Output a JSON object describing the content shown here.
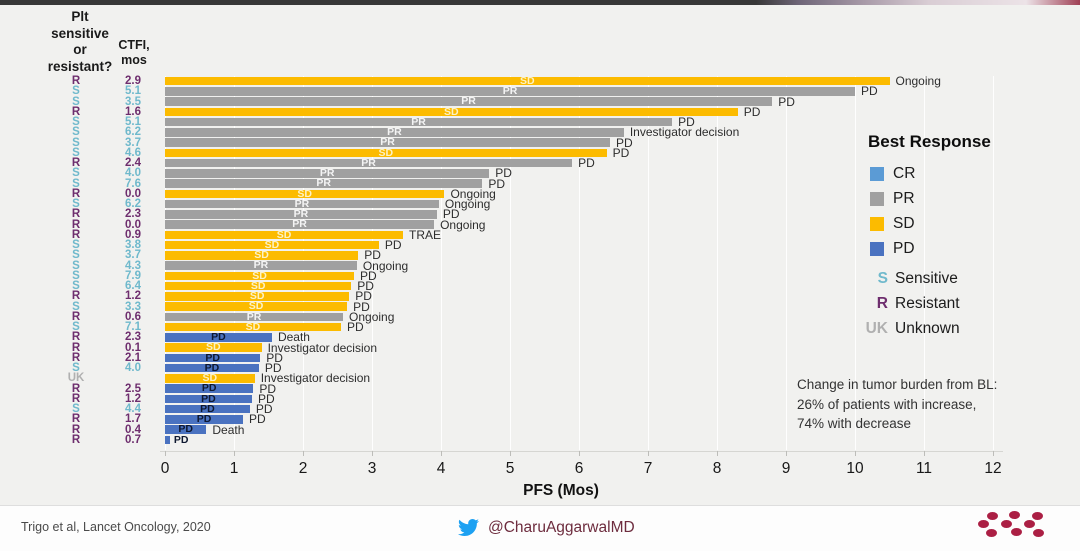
{
  "columns": {
    "plt_header_lines": [
      "Plt",
      "sensitive",
      "or",
      "resistant?"
    ],
    "ctfi_header_lines": [
      "CTFI,",
      "mos"
    ]
  },
  "colors": {
    "CR": "#5b9bd5",
    "PR": "#a0a0a0",
    "SD": "#fcbb00",
    "PD": "#4a72c0",
    "S": "#6fb9cc",
    "R": "#6e2e6e",
    "UK": "#b0b0b0"
  },
  "chart_data": {
    "type": "bar",
    "orientation": "horizontal",
    "xlabel": "PFS (Mos)",
    "xlim": [
      0,
      12
    ],
    "xticks": [
      0,
      1,
      2,
      3,
      4,
      5,
      6,
      7,
      8,
      9,
      10,
      11,
      12
    ],
    "grid": true,
    "rows": [
      {
        "plt": "R",
        "ctfi": "2.9",
        "response": "SD",
        "pfs": 10.5,
        "note": "Ongoing"
      },
      {
        "plt": "S",
        "ctfi": "5.1",
        "response": "PR",
        "pfs": 10.0,
        "note": "PD"
      },
      {
        "plt": "S",
        "ctfi": "3.5",
        "response": "PR",
        "pfs": 8.8,
        "note": "PD"
      },
      {
        "plt": "R",
        "ctfi": "1.6",
        "response": "SD",
        "pfs": 8.3,
        "note": "PD"
      },
      {
        "plt": "S",
        "ctfi": "5.1",
        "response": "PR",
        "pfs": 7.35,
        "note": "PD"
      },
      {
        "plt": "S",
        "ctfi": "6.2",
        "response": "PR",
        "pfs": 6.65,
        "note": "Investigator decision"
      },
      {
        "plt": "S",
        "ctfi": "3.7",
        "response": "PR",
        "pfs": 6.45,
        "note": "PD"
      },
      {
        "plt": "S",
        "ctfi": "4.6",
        "response": "SD",
        "pfs": 6.4,
        "note": "PD"
      },
      {
        "plt": "R",
        "ctfi": "2.4",
        "response": "PR",
        "pfs": 5.9,
        "note": "PD"
      },
      {
        "plt": "S",
        "ctfi": "4.0",
        "response": "PR",
        "pfs": 4.7,
        "note": "PD"
      },
      {
        "plt": "S",
        "ctfi": "7.6",
        "response": "PR",
        "pfs": 4.6,
        "note": "PD"
      },
      {
        "plt": "R",
        "ctfi": "0.0",
        "response": "SD",
        "pfs": 4.05,
        "note": "Ongoing"
      },
      {
        "plt": "S",
        "ctfi": "6.2",
        "response": "PR",
        "pfs": 3.97,
        "note": "Ongoing"
      },
      {
        "plt": "R",
        "ctfi": "2.3",
        "response": "PR",
        "pfs": 3.94,
        "note": "PD"
      },
      {
        "plt": "R",
        "ctfi": "0.0",
        "response": "PR",
        "pfs": 3.9,
        "note": "Ongoing"
      },
      {
        "plt": "R",
        "ctfi": "0.9",
        "response": "SD",
        "pfs": 3.45,
        "note": "TRAE"
      },
      {
        "plt": "S",
        "ctfi": "3.8",
        "response": "SD",
        "pfs": 3.1,
        "note": "PD"
      },
      {
        "plt": "S",
        "ctfi": "3.7",
        "response": "SD",
        "pfs": 2.8,
        "note": "PD"
      },
      {
        "plt": "S",
        "ctfi": "4.3",
        "response": "PR",
        "pfs": 2.78,
        "note": "Ongoing"
      },
      {
        "plt": "S",
        "ctfi": "7.9",
        "response": "SD",
        "pfs": 2.74,
        "note": "PD"
      },
      {
        "plt": "S",
        "ctfi": "6.4",
        "response": "SD",
        "pfs": 2.7,
        "note": "PD"
      },
      {
        "plt": "R",
        "ctfi": "1.2",
        "response": "SD",
        "pfs": 2.67,
        "note": "PD"
      },
      {
        "plt": "S",
        "ctfi": "3.3",
        "response": "SD",
        "pfs": 2.64,
        "note": "PD"
      },
      {
        "plt": "R",
        "ctfi": "0.6",
        "response": "PR",
        "pfs": 2.58,
        "note": "Ongoing"
      },
      {
        "plt": "S",
        "ctfi": "7.1",
        "response": "SD",
        "pfs": 2.55,
        "note": "PD"
      },
      {
        "plt": "R",
        "ctfi": "2.3",
        "response": "PD",
        "pfs": 1.55,
        "note": "Death"
      },
      {
        "plt": "R",
        "ctfi": "0.1",
        "response": "SD",
        "pfs": 1.4,
        "note": "Investigator decision"
      },
      {
        "plt": "R",
        "ctfi": "2.1",
        "response": "PD",
        "pfs": 1.38,
        "note": "PD"
      },
      {
        "plt": "S",
        "ctfi": "4.0",
        "response": "PD",
        "pfs": 1.36,
        "note": "PD"
      },
      {
        "plt": "UK",
        "ctfi": "",
        "response": "SD",
        "pfs": 1.3,
        "note": "Investigator decision"
      },
      {
        "plt": "R",
        "ctfi": "2.5",
        "response": "PD",
        "pfs": 1.28,
        "note": "PD"
      },
      {
        "plt": "R",
        "ctfi": "1.2",
        "response": "PD",
        "pfs": 1.26,
        "note": "PD"
      },
      {
        "plt": "S",
        "ctfi": "4.4",
        "response": "PD",
        "pfs": 1.23,
        "note": "PD"
      },
      {
        "plt": "R",
        "ctfi": "1.7",
        "response": "PD",
        "pfs": 1.13,
        "note": "PD"
      },
      {
        "plt": "R",
        "ctfi": "0.4",
        "response": "PD",
        "pfs": 0.6,
        "note": "Death"
      },
      {
        "plt": "R",
        "ctfi": "0.7",
        "response": "PD",
        "pfs": 0.07,
        "note": ""
      }
    ]
  },
  "legend": {
    "title": "Best Response",
    "items": [
      {
        "key": "CR",
        "label": "CR"
      },
      {
        "key": "PR",
        "label": "PR"
      },
      {
        "key": "SD",
        "label": "SD"
      },
      {
        "key": "PD",
        "label": "PD"
      }
    ],
    "status_items": [
      {
        "key": "S",
        "label": "Sensitive"
      },
      {
        "key": "R",
        "label": "Resistant"
      },
      {
        "key": "UK",
        "label": "Unknown"
      }
    ]
  },
  "annotation": {
    "lines": [
      "Change in tumor burden from BL:",
      "26% of patients with increase,",
      "74% with decrease"
    ]
  },
  "footer": {
    "citation": "Trigo et al, Lancet Oncology, 2020",
    "twitter_handle": "@CharuAggarwalMD",
    "twitter_icon": "twitter-bird-icon"
  }
}
